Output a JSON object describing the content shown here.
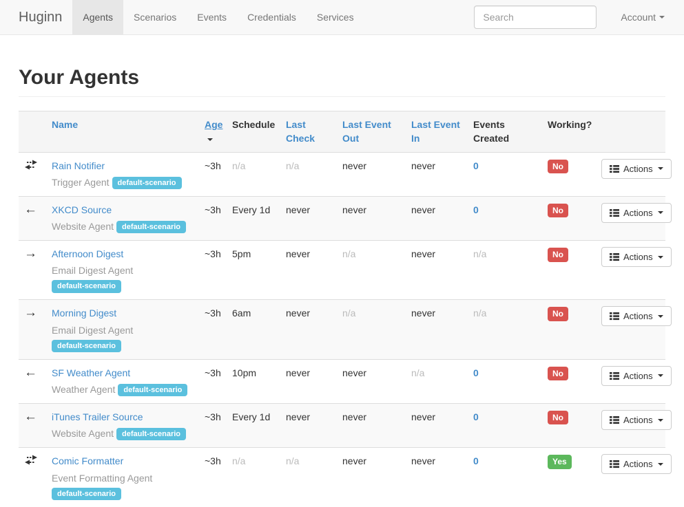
{
  "navbar": {
    "brand": "Huginn",
    "items": [
      {
        "label": "Agents",
        "active": true
      },
      {
        "label": "Scenarios",
        "active": false
      },
      {
        "label": "Events",
        "active": false
      },
      {
        "label": "Credentials",
        "active": false
      },
      {
        "label": "Services",
        "active": false
      }
    ],
    "search": {
      "placeholder": "Search"
    },
    "account": {
      "label": "Account"
    }
  },
  "page": {
    "title": "Your Agents"
  },
  "table": {
    "headers": [
      "",
      "Name",
      "Age",
      "Schedule",
      "Last Check",
      "Last Event Out",
      "Last Event In",
      "Events Created",
      "Working?",
      ""
    ],
    "actions_label": "Actions",
    "agents": [
      {
        "icon": "exchange",
        "name": "Rain Notifier",
        "type": "Trigger Agent",
        "scenario": "default-scenario",
        "age": "~3h",
        "schedule": "n/a",
        "last_check": "n/a",
        "last_event_out": "never",
        "last_event_in": "never",
        "events_created": "0",
        "working": "No"
      },
      {
        "icon": "arrow-left",
        "name": "XKCD Source",
        "type": "Website Agent",
        "scenario": "default-scenario",
        "age": "~3h",
        "schedule": "Every 1d",
        "last_check": "never",
        "last_event_out": "never",
        "last_event_in": "never",
        "events_created": "0",
        "working": "No"
      },
      {
        "icon": "arrow-right",
        "name": "Afternoon Digest",
        "type": "Email Digest Agent",
        "scenario": "default-scenario",
        "age": "~3h",
        "schedule": "5pm",
        "last_check": "never",
        "last_event_out": "n/a",
        "last_event_in": "never",
        "events_created": "n/a",
        "working": "No"
      },
      {
        "icon": "arrow-right",
        "name": "Morning Digest",
        "type": "Email Digest Agent",
        "scenario": "default-scenario",
        "age": "~3h",
        "schedule": "6am",
        "last_check": "never",
        "last_event_out": "n/a",
        "last_event_in": "never",
        "events_created": "n/a",
        "working": "No"
      },
      {
        "icon": "arrow-left",
        "name": "SF Weather Agent",
        "type": "Weather Agent",
        "scenario": "default-scenario",
        "age": "~3h",
        "schedule": "10pm",
        "last_check": "never",
        "last_event_out": "never",
        "last_event_in": "n/a",
        "events_created": "0",
        "working": "No"
      },
      {
        "icon": "arrow-left",
        "name": "iTunes Trailer Source",
        "type": "Website Agent",
        "scenario": "default-scenario",
        "age": "~3h",
        "schedule": "Every 1d",
        "last_check": "never",
        "last_event_out": "never",
        "last_event_in": "never",
        "events_created": "0",
        "working": "No"
      },
      {
        "icon": "exchange",
        "name": "Comic Formatter",
        "type": "Event Formatting Agent",
        "scenario": "default-scenario",
        "age": "~3h",
        "schedule": "n/a",
        "last_check": "n/a",
        "last_event_out": "never",
        "last_event_in": "never",
        "events_created": "0",
        "working": "Yes"
      }
    ]
  },
  "colors": {
    "link_blue": "#428bca",
    "badge_info": "#5bc0de",
    "badge_danger": "#d9534f",
    "badge_success": "#5cb85c",
    "navbar_bg": "#f8f8f8",
    "stripe_bg": "#f9f9f9"
  }
}
